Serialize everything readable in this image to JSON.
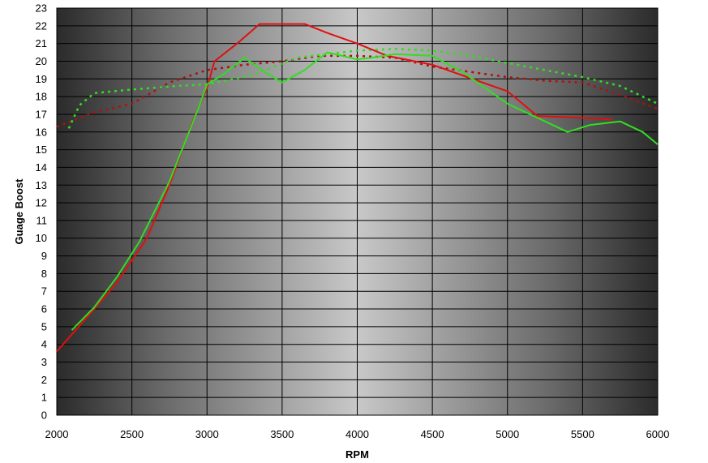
{
  "chart_data": {
    "type": "line",
    "title": "",
    "xlabel": "RPM",
    "ylabel": "Guage Boost",
    "xlim": [
      2000,
      6000
    ],
    "ylim": [
      0,
      23
    ],
    "x_ticks": [
      2000,
      2500,
      3000,
      3500,
      4000,
      4500,
      5000,
      5500,
      6000
    ],
    "y_ticks": [
      0,
      1,
      2,
      3,
      4,
      5,
      6,
      7,
      8,
      9,
      10,
      11,
      12,
      13,
      14,
      15,
      16,
      17,
      18,
      19,
      20,
      21,
      22,
      23
    ],
    "grid": true,
    "legend": "none",
    "background": "dark-edged horizontal gray gradient",
    "series": [
      {
        "color": "#e01010",
        "style": "solid",
        "x": [
          2000,
          2250,
          2400,
          2600,
          2750,
          2900,
          3000,
          3050,
          3200,
          3350,
          3500,
          3650,
          3800,
          4000,
          4200,
          4500,
          4800,
          5000,
          5200,
          5500,
          5700
        ],
        "y": [
          3.6,
          6.0,
          7.5,
          10.0,
          13.0,
          16.5,
          18.5,
          20.0,
          21.0,
          22.1,
          22.1,
          22.1,
          21.6,
          21.0,
          20.3,
          19.8,
          18.9,
          18.3,
          16.9,
          16.8,
          16.7
        ]
      },
      {
        "color": "#33dd22",
        "style": "solid",
        "x": [
          2100,
          2250,
          2400,
          2550,
          2750,
          2950,
          3000,
          3100,
          3250,
          3400,
          3500,
          3650,
          3800,
          3900,
          4000,
          4100,
          4250,
          4500,
          4700,
          4900,
          5000,
          5200,
          5400,
          5550,
          5750,
          5900,
          6000
        ],
        "y": [
          4.8,
          6.1,
          7.8,
          9.8,
          13.2,
          17.5,
          18.7,
          19.2,
          20.2,
          19.3,
          18.8,
          19.5,
          20.5,
          20.3,
          20.1,
          20.2,
          20.4,
          20.3,
          19.4,
          18.2,
          17.6,
          16.8,
          16.0,
          16.4,
          16.6,
          16.0,
          15.3
        ]
      },
      {
        "color": "#b01010",
        "style": "dotted",
        "x": [
          2000,
          2250,
          2500,
          2750,
          3000,
          3250,
          3500,
          3750,
          4000,
          4250,
          4500,
          4750,
          5000,
          5250,
          5500,
          5750,
          6000
        ],
        "y": [
          16.3,
          17.1,
          17.6,
          18.8,
          19.5,
          19.8,
          20.0,
          20.3,
          20.3,
          20.2,
          19.7,
          19.4,
          19.1,
          18.9,
          18.8,
          18.1,
          17.3
        ]
      },
      {
        "color": "#33dd22",
        "style": "dotted",
        "x": [
          2080,
          2150,
          2250,
          2500,
          2800,
          3000,
          3300,
          3600,
          3800,
          4000,
          4250,
          4500,
          4750,
          5000,
          5250,
          5500,
          5750,
          6000
        ],
        "y": [
          16.2,
          17.5,
          18.2,
          18.4,
          18.6,
          18.7,
          19.2,
          20.2,
          20.4,
          20.6,
          20.7,
          20.6,
          20.3,
          19.9,
          19.5,
          19.1,
          18.6,
          17.6
        ]
      }
    ]
  }
}
